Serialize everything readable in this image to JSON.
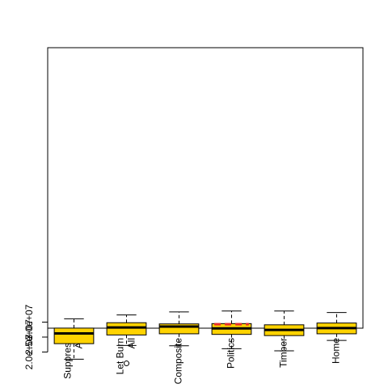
{
  "chart_data": {
    "type": "boxplot",
    "title": "",
    "xlabel": "",
    "ylabel": "",
    "ylim": [
      15500000,
      35000000
    ],
    "y_ticks": [
      20000000,
      25000000,
      30000000
    ],
    "y_tick_labels": [
      "2.0e+07",
      "2.5e+07",
      "3.0e+07"
    ],
    "categories": [
      [
        "Suppress",
        "All"
      ],
      [
        "Let Burn",
        "All"
      ],
      [
        "Composite"
      ],
      [
        "Politics"
      ],
      [
        "Timber"
      ],
      [
        "Home"
      ]
    ],
    "boxes": [
      {
        "whisker_low": 17600000,
        "q1": 22800000,
        "median": 26200000,
        "q3": 28000000,
        "whisker_high": 31100000,
        "outliers": []
      },
      {
        "whisker_low": 22200000,
        "q1": 25700000,
        "median": 28200000,
        "q3": 29800000,
        "whisker_high": 32400000,
        "outliers": [
          16200000
        ]
      },
      {
        "whisker_low": 22100000,
        "q1": 26100000,
        "median": 28500000,
        "q3": 29400000,
        "whisker_high": 33400000,
        "outliers": []
      },
      {
        "whisker_low": 21100000,
        "q1": 25900000,
        "median": 27900000,
        "q3": 29500000,
        "whisker_high": 33700000,
        "outliers": []
      },
      {
        "whisker_low": 20400000,
        "q1": 25500000,
        "median": 27400000,
        "q3": 29100000,
        "whisker_high": 33700000,
        "outliers": []
      },
      {
        "whisker_low": 23900000,
        "q1": 26100000,
        "median": 28000000,
        "q3": 29700000,
        "whisker_high": 33200000,
        "outliers": []
      }
    ],
    "reference_line": {
      "value": 29300000,
      "category_index": 3,
      "color": "#e8302a",
      "style": "dashed"
    },
    "box_fill": "#ffd300",
    "grid": false,
    "legend": "none"
  }
}
